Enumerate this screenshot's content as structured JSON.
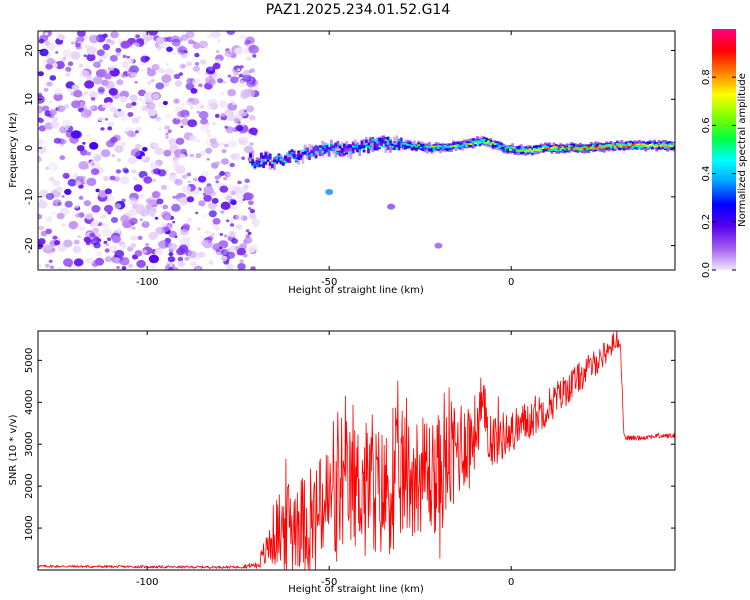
{
  "figure_title": "PAZ1.2025.234.01.52.G14",
  "chart_data": [
    {
      "type": "heatmap",
      "title": "PAZ1.2025.234.01.52.G14",
      "xlabel": "Height of straight line (km)",
      "ylabel": "Frequency (Hz)",
      "xlim": [
        -130,
        45
      ],
      "ylim": [
        -25,
        24
      ],
      "xticks": [
        -100,
        -50,
        0
      ],
      "xtick_labels": [
        "-100",
        "-50",
        "0"
      ],
      "yticks": [
        20,
        10,
        0,
        -10,
        -20
      ],
      "ytick_labels": [
        "20",
        "10",
        "0",
        "-10",
        "-20"
      ],
      "colorbar": {
        "label": "Normalized spectral amplitude",
        "range": [
          0.0,
          1.0
        ],
        "ticks": [
          0.0,
          0.2,
          0.4,
          0.6,
          0.8
        ],
        "tick_labels": [
          "0.0",
          "0.2",
          "0.4",
          "0.6",
          "0.8"
        ],
        "colormap": "hsv-like (light purple to red)",
        "colors": [
          "#f2e6fa",
          "#a25cf0",
          "#5500f0",
          "#0000ff",
          "#00a0ff",
          "#00ffff",
          "#00ff40",
          "#80ff00",
          "#ffff00",
          "#ff8000",
          "#ff0000",
          "#ff0080"
        ]
      },
      "noise_region_x": [
        -130,
        -70
      ],
      "ridge": [
        {
          "x": -72,
          "freq": -2.5,
          "amp": 0.45
        },
        {
          "x": -65,
          "freq": -2.5,
          "amp": 0.55
        },
        {
          "x": -58,
          "freq": -1.5,
          "amp": 0.4
        },
        {
          "x": -50,
          "freq": 0.0,
          "amp": 0.45
        },
        {
          "x": -45,
          "freq": -0.5,
          "amp": 0.4
        },
        {
          "x": -40,
          "freq": 0.5,
          "amp": 0.55
        },
        {
          "x": -35,
          "freq": 1.0,
          "amp": 0.5
        },
        {
          "x": -28,
          "freq": 0.5,
          "amp": 0.55
        },
        {
          "x": -22,
          "freq": 0.0,
          "amp": 0.6
        },
        {
          "x": -15,
          "freq": 0.5,
          "amp": 0.65
        },
        {
          "x": -8,
          "freq": 1.5,
          "amp": 0.75
        },
        {
          "x": -2,
          "freq": 0.0,
          "amp": 0.6
        },
        {
          "x": 4,
          "freq": -0.5,
          "amp": 0.7
        },
        {
          "x": 10,
          "freq": 0.0,
          "amp": 0.85
        },
        {
          "x": 20,
          "freq": 0.0,
          "amp": 0.9
        },
        {
          "x": 30,
          "freq": 0.5,
          "amp": 0.85
        },
        {
          "x": 45,
          "freq": 0.5,
          "amp": 0.8
        }
      ],
      "faint_features": [
        {
          "x": -50,
          "freq": -9,
          "amp": 0.35
        },
        {
          "x": -33,
          "freq": -12,
          "amp": 0.12
        },
        {
          "x": -20,
          "freq": -20,
          "amp": 0.1
        }
      ]
    },
    {
      "type": "line",
      "xlabel": "Height of straight line (km)",
      "ylabel": "SNR (10 * v/v)",
      "xlim": [
        -130,
        45
      ],
      "ylim": [
        0,
        5700
      ],
      "xticks": [
        -100,
        -50,
        0
      ],
      "xtick_labels": [
        "-100",
        "-50",
        "0"
      ],
      "yticks": [
        1000,
        2000,
        3000,
        4000,
        5000
      ],
      "ytick_labels": [
        "1000",
        "2000",
        "3000",
        "4000",
        "5000"
      ],
      "color": "#ff0000",
      "series": [
        {
          "name": "SNR",
          "x": [
            -130,
            -110,
            -90,
            -75,
            -70,
            -68,
            -65,
            -60,
            -55,
            -50,
            -45,
            -40,
            -35,
            -30,
            -25,
            -20,
            -15,
            -10,
            -8,
            -5,
            0,
            5,
            10,
            15,
            20,
            25,
            29,
            30,
            31,
            35,
            40,
            45
          ],
          "y": [
            90,
            80,
            70,
            70,
            120,
            300,
            900,
            1200,
            1100,
            1700,
            1900,
            2100,
            1800,
            2200,
            2300,
            2200,
            2900,
            3300,
            3800,
            3100,
            3300,
            3600,
            3900,
            4300,
            4700,
            5100,
            5500,
            5400,
            3150,
            3150,
            3200,
            3200
          ],
          "noise_amplitude": [
            30,
            30,
            30,
            30,
            80,
            250,
            800,
            1100,
            1200,
            1400,
            1500,
            1500,
            1600,
            1500,
            1400,
            1400,
            1300,
            900,
            800,
            700,
            500,
            500,
            450,
            400,
            350,
            300,
            250,
            100,
            60,
            60,
            60,
            60
          ]
        }
      ]
    }
  ]
}
